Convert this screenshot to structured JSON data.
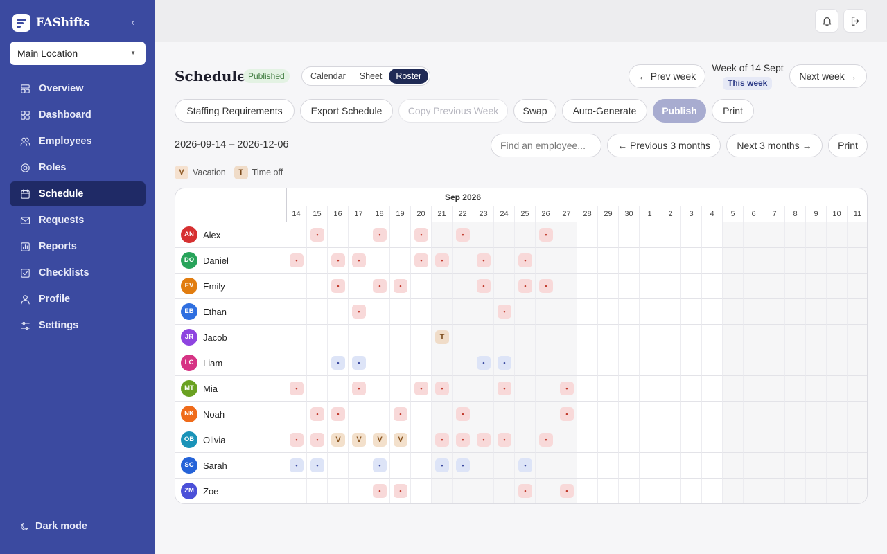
{
  "app": {
    "brand": "FAShifts",
    "location": "Main Location"
  },
  "sidebar": {
    "items": [
      {
        "label": "Overview",
        "icon": "overview-icon"
      },
      {
        "label": "Dashboard",
        "icon": "dashboard-icon"
      },
      {
        "label": "Employees",
        "icon": "employees-icon"
      },
      {
        "label": "Roles",
        "icon": "roles-icon"
      },
      {
        "label": "Schedule",
        "icon": "calendar-icon",
        "active": true
      },
      {
        "label": "Requests",
        "icon": "mail-icon"
      },
      {
        "label": "Reports",
        "icon": "reports-icon"
      },
      {
        "label": "Checklists",
        "icon": "checklist-icon"
      },
      {
        "label": "Profile",
        "icon": "profile-icon"
      },
      {
        "label": "Settings",
        "icon": "settings-icon"
      }
    ],
    "dark_mode": "Dark mode"
  },
  "header": {
    "title": "Schedule",
    "status": "Published",
    "views": [
      "Calendar",
      "Sheet",
      "Roster"
    ],
    "active_view": "Roster",
    "prev_week": "← Prev week",
    "week_label": "Week of 14 Sept",
    "this_week": "This week",
    "next_week": "Next week →"
  },
  "toolbar": {
    "staffing": "Staffing Requirements",
    "export": "Export Schedule",
    "copy_prev": "Copy Previous Week",
    "swap": "Swap",
    "auto_generate": "Auto-Generate",
    "publish": "Publish",
    "print": "Print"
  },
  "range_bar": {
    "range": "2026-09-14 – 2026-12-06",
    "search_placeholder": "Find an employee...",
    "prev_3": "← Previous 3 months",
    "next_3": "Next 3 months →",
    "print": "Print"
  },
  "legend": [
    {
      "code": "V",
      "label": "Vacation"
    },
    {
      "code": "T",
      "label": "Time off"
    }
  ],
  "roster": {
    "month": "Sep 2026",
    "days": [
      "14",
      "15",
      "16",
      "17",
      "18",
      "19",
      "20",
      "21",
      "22",
      "23",
      "24",
      "25",
      "26",
      "27",
      "28",
      "29",
      "30",
      "1",
      "2",
      "3",
      "4",
      "5",
      "6",
      "7",
      "8",
      "9",
      "10",
      "11"
    ],
    "shaded_days": [
      7,
      8,
      9,
      10,
      11,
      12,
      13,
      21,
      22,
      23,
      24,
      25,
      26,
      27
    ],
    "employees": [
      {
        "initials": "AN",
        "name": "Alex",
        "color": "#d63031",
        "shifts": [
          [
            1,
            "r"
          ],
          [
            4,
            "r"
          ],
          [
            6,
            "r"
          ],
          [
            8,
            "r"
          ],
          [
            12,
            "r"
          ]
        ]
      },
      {
        "initials": "DO",
        "name": "Daniel",
        "color": "#27a35a",
        "shifts": [
          [
            0,
            "r"
          ],
          [
            2,
            "r"
          ],
          [
            3,
            "r"
          ],
          [
            6,
            "r"
          ],
          [
            7,
            "r"
          ],
          [
            9,
            "r"
          ],
          [
            11,
            "r"
          ]
        ]
      },
      {
        "initials": "EV",
        "name": "Emily",
        "color": "#e17d10",
        "shifts": [
          [
            2,
            "r"
          ],
          [
            4,
            "r"
          ],
          [
            5,
            "r"
          ],
          [
            9,
            "r"
          ],
          [
            11,
            "r"
          ],
          [
            12,
            "r"
          ]
        ]
      },
      {
        "initials": "EB",
        "name": "Ethan",
        "color": "#2f6fe0",
        "shifts": [
          [
            3,
            "r"
          ],
          [
            10,
            "r"
          ]
        ]
      },
      {
        "initials": "JR",
        "name": "Jacob",
        "color": "#8e44e0",
        "shifts": [
          [
            7,
            "T"
          ]
        ]
      },
      {
        "initials": "LC",
        "name": "Liam",
        "color": "#d63384",
        "shifts": [
          [
            2,
            "b"
          ],
          [
            3,
            "b"
          ],
          [
            9,
            "b"
          ],
          [
            10,
            "b"
          ]
        ]
      },
      {
        "initials": "MT",
        "name": "Mia",
        "color": "#6aa121",
        "shifts": [
          [
            0,
            "r"
          ],
          [
            3,
            "r"
          ],
          [
            6,
            "r"
          ],
          [
            7,
            "r"
          ],
          [
            10,
            "r"
          ],
          [
            13,
            "r"
          ]
        ]
      },
      {
        "initials": "NK",
        "name": "Noah",
        "color": "#ef6b1a",
        "shifts": [
          [
            1,
            "r"
          ],
          [
            2,
            "r"
          ],
          [
            5,
            "r"
          ],
          [
            8,
            "r"
          ],
          [
            13,
            "r"
          ]
        ]
      },
      {
        "initials": "OB",
        "name": "Olivia",
        "color": "#1a93b8",
        "shifts": [
          [
            0,
            "r"
          ],
          [
            1,
            "r"
          ],
          [
            2,
            "V"
          ],
          [
            3,
            "V"
          ],
          [
            4,
            "V"
          ],
          [
            5,
            "V"
          ],
          [
            7,
            "r"
          ],
          [
            8,
            "r"
          ],
          [
            9,
            "r"
          ],
          [
            10,
            "r"
          ],
          [
            12,
            "r"
          ]
        ]
      },
      {
        "initials": "SC",
        "name": "Sarah",
        "color": "#2563d8",
        "shifts": [
          [
            0,
            "b"
          ],
          [
            1,
            "b"
          ],
          [
            4,
            "b"
          ],
          [
            7,
            "b"
          ],
          [
            8,
            "b"
          ],
          [
            11,
            "b"
          ]
        ]
      },
      {
        "initials": "ZM",
        "name": "Zoe",
        "color": "#4b50d8",
        "shifts": [
          [
            4,
            "r"
          ],
          [
            5,
            "r"
          ],
          [
            11,
            "r"
          ],
          [
            13,
            "r"
          ]
        ]
      }
    ]
  }
}
